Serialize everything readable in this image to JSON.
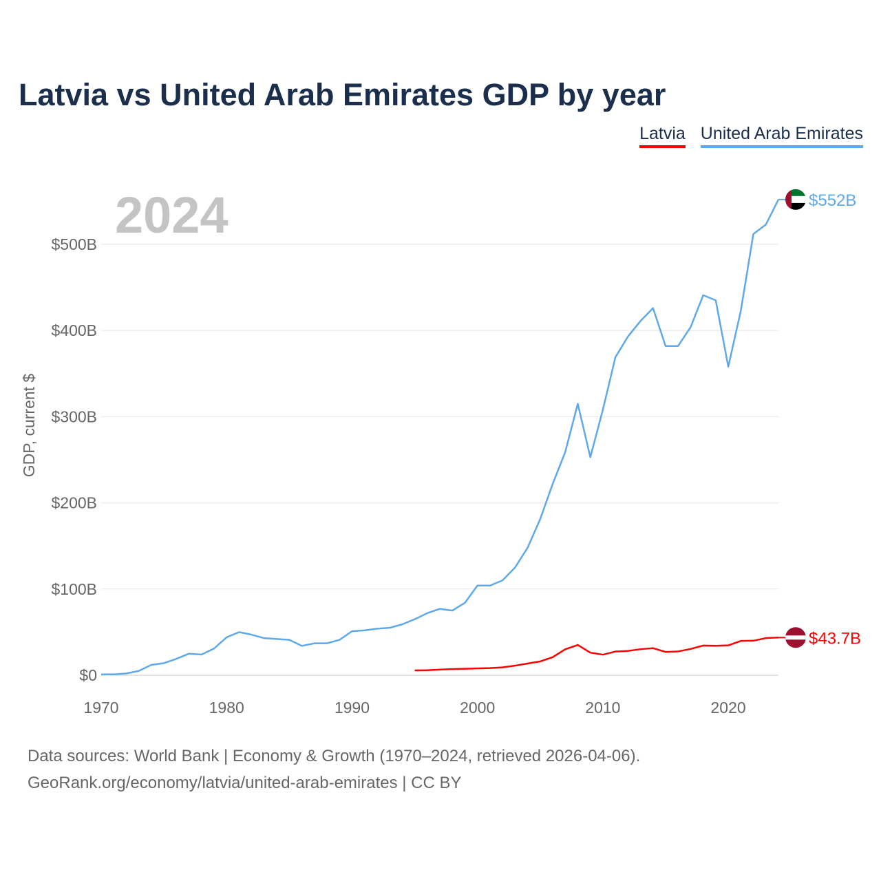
{
  "chart_data": {
    "type": "line",
    "title": "Latvia vs United Arab Emirates GDP by year",
    "ylabel": "GDP, current $",
    "xlabel": "",
    "year_watermark": "2024",
    "xlim": [
      1970,
      2024
    ],
    "ylim": [
      0,
      552
    ],
    "x_ticks": [
      1970,
      1980,
      1990,
      2000,
      2010,
      2020
    ],
    "x_tick_labels": [
      "1970",
      "1980",
      "1990",
      "2000",
      "2010",
      "2020"
    ],
    "y_ticks": [
      0,
      100,
      200,
      300,
      400,
      500
    ],
    "y_tick_labels": [
      "$0",
      "$100B",
      "$200B",
      "$300B",
      "$400B",
      "$500B"
    ],
    "grid": true,
    "legend_position": "top-right",
    "series": [
      {
        "name": "Latvia",
        "color": "#ff0000",
        "end_label": "$43.7B",
        "x": [
          1995,
          1996,
          1997,
          1998,
          1999,
          2000,
          2001,
          2002,
          2003,
          2004,
          2005,
          2006,
          2007,
          2008,
          2009,
          2010,
          2011,
          2012,
          2013,
          2014,
          2015,
          2016,
          2017,
          2018,
          2019,
          2020,
          2021,
          2022,
          2023,
          2024
        ],
        "values": [
          5.6,
          5.8,
          6.5,
          7.1,
          7.5,
          7.9,
          8.3,
          9.1,
          11.1,
          13.6,
          16.0,
          20.9,
          30.1,
          35.1,
          26.2,
          23.8,
          27.5,
          28.2,
          30.2,
          31.4,
          27.0,
          27.6,
          30.5,
          34.4,
          34.1,
          34.6,
          39.8,
          40.0,
          43.1,
          43.7
        ]
      },
      {
        "name": "United Arab Emirates",
        "color": "#5fa8ea",
        "end_label": "$552B",
        "x": [
          1970,
          1971,
          1972,
          1973,
          1974,
          1975,
          1976,
          1977,
          1978,
          1979,
          1980,
          1981,
          1982,
          1983,
          1984,
          1985,
          1986,
          1987,
          1988,
          1989,
          1990,
          1991,
          1992,
          1993,
          1994,
          1995,
          1996,
          1997,
          1998,
          1999,
          2000,
          2001,
          2002,
          2003,
          2004,
          2005,
          2006,
          2007,
          2008,
          2009,
          2010,
          2011,
          2012,
          2013,
          2014,
          2015,
          2016,
          2017,
          2018,
          2019,
          2020,
          2021,
          2022,
          2023,
          2024
        ],
        "values": [
          1,
          1,
          2,
          5,
          12,
          14,
          19,
          25,
          24,
          31,
          44,
          50,
          47,
          43,
          42,
          41,
          34,
          37,
          37,
          41,
          51,
          52,
          54,
          55,
          59,
          65,
          72,
          77,
          75,
          84,
          104,
          104,
          110,
          125,
          148,
          181,
          222,
          259,
          315,
          253,
          308,
          369,
          393,
          411,
          426,
          382,
          382,
          404,
          441,
          435,
          358,
          423,
          512,
          523,
          552
        ]
      }
    ]
  },
  "footer": {
    "line1": "Data sources: World Bank | Economy & Growth (1970–2024, retrieved 2026-04-06).",
    "line2": "GeoRank.org/economy/latvia/united-arab-emirates | CC BY"
  }
}
